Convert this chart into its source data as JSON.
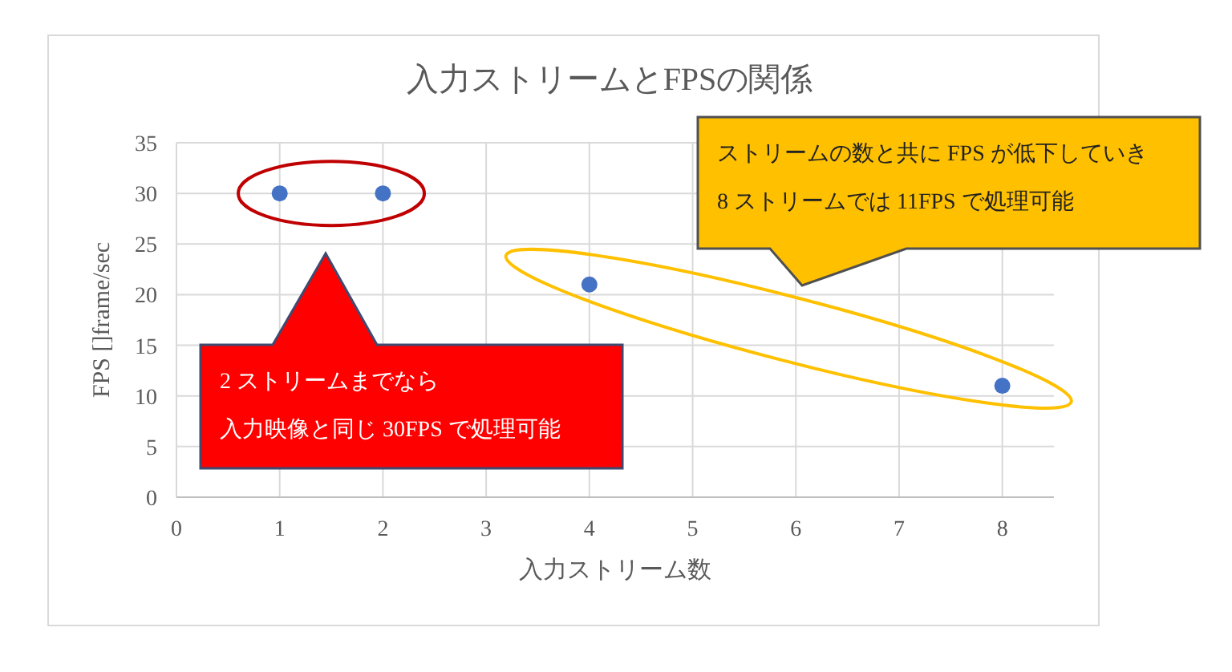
{
  "chart_data": {
    "type": "scatter",
    "title": "入力ストリームとFPSの関係",
    "xlabel": "入力ストリーム数",
    "ylabel": "FPS []frame/sec",
    "x": [
      1,
      2,
      4,
      8
    ],
    "series": [
      {
        "color": "#4472c4",
        "values": [
          30,
          30,
          21,
          11
        ]
      }
    ],
    "xlim": [
      0,
      8.5
    ],
    "xticks": [
      0,
      1,
      2,
      3,
      4,
      5,
      6,
      7,
      8
    ],
    "ylim": [
      0,
      35
    ],
    "yticks": [
      0,
      5,
      10,
      15,
      20,
      25,
      30,
      35
    ],
    "grid": true,
    "marker": "circle",
    "annotations": [
      "2 ストリームまでなら",
      "入力映像と同じ 30FPS で処理可能",
      "ストリームの数と共に FPS が低下していき",
      "8 ストリームでは 11FPS で処理可能"
    ]
  }
}
